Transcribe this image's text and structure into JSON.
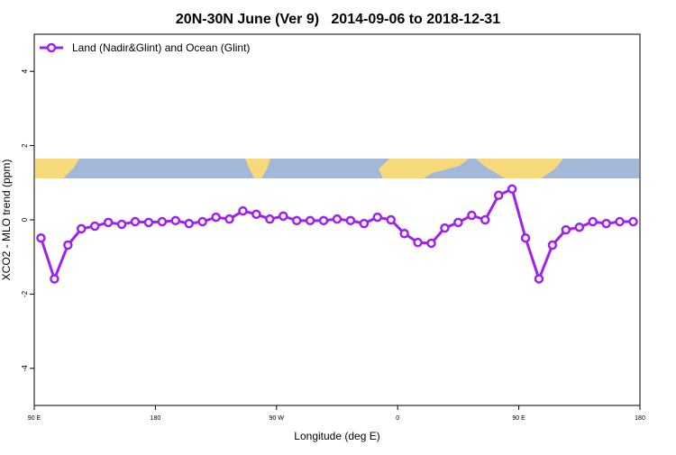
{
  "chart_data": {
    "type": "line",
    "title": "20N-30N June (Ver 9)   2014-09-06 to 2018-12-31",
    "x_label": "Longitude (deg E)",
    "y_label": "XCO2 - MLO trend (ppm)",
    "x": [
      94,
      102,
      110,
      118,
      126,
      134,
      142,
      150,
      158,
      166,
      174,
      182,
      190,
      198,
      206,
      214,
      222,
      230,
      238,
      246,
      254,
      262,
      270,
      278,
      286,
      294,
      302,
      310,
      318,
      326,
      334,
      342,
      350,
      358,
      366,
      374,
      382,
      390,
      398,
      406,
      414,
      422,
      430,
      438,
      446
    ],
    "series": [
      {
        "name": "Land (Nadir&Glint) and Ocean (Glint)",
        "color": "#a020f0",
        "values": [
          -0.49,
          -1.59,
          -0.68,
          -0.24,
          -0.17,
          -0.07,
          -0.12,
          -0.05,
          -0.07,
          -0.05,
          -0.02,
          -0.1,
          -0.05,
          0.07,
          0.02,
          0.24,
          0.15,
          0.02,
          0.1,
          -0.02,
          -0.02,
          -0.02,
          0.02,
          -0.02,
          -0.1,
          0.07,
          0.0,
          -0.37,
          -0.61,
          -0.63,
          -0.22,
          -0.07,
          0.12,
          0.0,
          0.66,
          0.83,
          -0.49,
          -1.59,
          -0.68,
          -0.27,
          -0.2,
          -0.05,
          -0.1,
          -0.05,
          -0.05
        ]
      }
    ],
    "xlim": [
      90,
      450
    ],
    "xticks": [
      {
        "value": 90,
        "label": "90 E"
      },
      {
        "value": 162,
        "label": "180"
      },
      {
        "value": 234,
        "label": "90 W"
      },
      {
        "value": 306,
        "label": "0"
      },
      {
        "value": 378,
        "label": "90 E"
      },
      {
        "value": 450,
        "label": "180"
      }
    ],
    "ylim": [
      -5,
      5
    ],
    "yticks": [
      -4,
      -2,
      0,
      2,
      4
    ],
    "legend": "top-left"
  }
}
